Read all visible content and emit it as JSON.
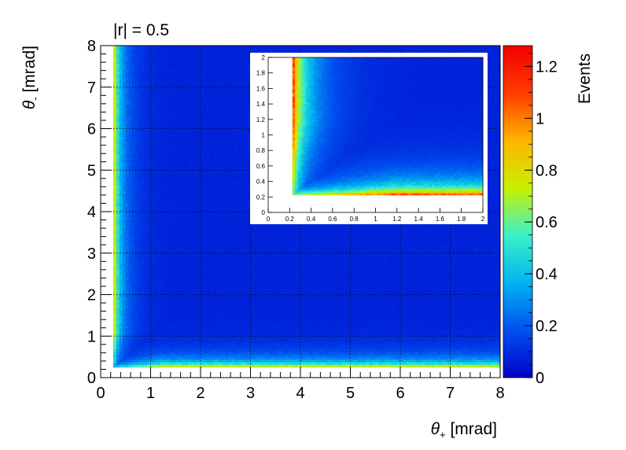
{
  "chart_data": [
    {
      "type": "heatmap",
      "panel": "main",
      "title": "|r| = 0.5",
      "xlabel": "θ+ [mrad]",
      "ylabel": "θ- [mrad]",
      "zlabel": "Events",
      "xlim": [
        0,
        8
      ],
      "ylim": [
        0,
        8
      ],
      "zlim": [
        0,
        1.28
      ],
      "x_ticks": [
        "0",
        "1",
        "2",
        "3",
        "4",
        "5",
        "6",
        "7",
        "8"
      ],
      "y_ticks": [
        "0",
        "1",
        "2",
        "3",
        "4",
        "5",
        "6",
        "7",
        "8"
      ],
      "z_ticks": [
        "0",
        "0.2",
        "0.4",
        "0.6",
        "0.8",
        "1",
        "1.2"
      ],
      "grid": true,
      "colormap": [
        "#0000c8",
        "#0050f0",
        "#00b4f0",
        "#3cf0c8",
        "#c8f000",
        "#ffb400",
        "#ff3c00",
        "#f00000"
      ],
      "band": {
        "description_value_peak": 1.28,
        "ridge_min": 0.22,
        "background_level": 0.08
      }
    },
    {
      "type": "heatmap",
      "panel": "inset",
      "xlim": [
        0,
        2
      ],
      "ylim": [
        0,
        2
      ],
      "x_ticks": [
        "0",
        "0.2",
        "0.4",
        "0.6",
        "0.8",
        "1",
        "1.2",
        "1.4",
        "1.6",
        "1.8",
        "2"
      ],
      "y_ticks": [
        "0",
        "0.2",
        "0.4",
        "0.6",
        "0.8",
        "1",
        "1.2",
        "1.4",
        "1.6",
        "1.8",
        "2"
      ],
      "grid": false
    }
  ]
}
